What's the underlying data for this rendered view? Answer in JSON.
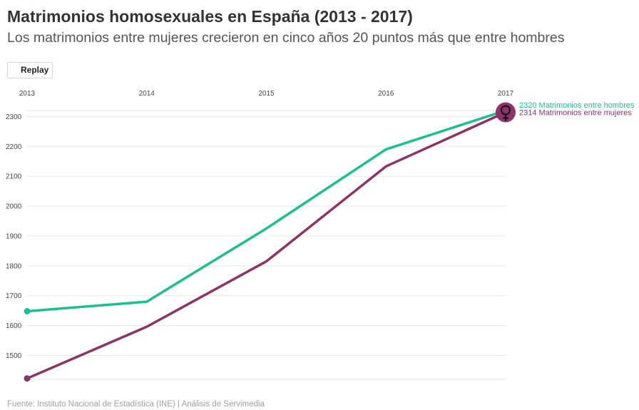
{
  "header": {
    "title": "Matrimonios homosexuales en España (2013 - 2017)",
    "subtitle": "Los matrimonios entre mujeres crecieron en cinco años 20 puntos más que entre hombres"
  },
  "controls": {
    "replay_label": "Replay"
  },
  "footer": {
    "source": "Fuente: Instituto Nacional de Estadística (INE) | Análisis de Servimedia"
  },
  "chart_data": {
    "type": "line",
    "title": "Matrimonios homosexuales en España (2013 - 2017)",
    "subtitle": "Los matrimonios entre mujeres crecieron en cinco años 20 puntos más que entre hombres",
    "xlabel": "",
    "ylabel": "",
    "x": [
      2013,
      2014,
      2015,
      2016,
      2017
    ],
    "x_tick_labels": [
      "2013",
      "2014",
      "2015",
      "2016",
      "2017"
    ],
    "y_ticks": [
      1500,
      1600,
      1700,
      1800,
      1900,
      2000,
      2100,
      2200,
      2300
    ],
    "y_tick_labels": [
      "1500",
      "1600",
      "1700",
      "1800",
      "1900",
      "2000",
      "2100",
      "2200",
      "2300"
    ],
    "ylim": [
      1420,
      2320
    ],
    "grid": true,
    "x_axis_position": "top",
    "series": [
      {
        "name": "Matrimonios entre hombres",
        "values": [
          1648,
          1680,
          1925,
          2190,
          2320
        ],
        "color": "#1dbf8e",
        "end_label": "2320 Matrimonios entre hombres"
      },
      {
        "name": "Matrimonios entre mujeres",
        "values": [
          1423,
          1596,
          1815,
          2133,
          2314
        ],
        "color": "#8b3468",
        "end_label": "2314 Matrimonios entre mujeres",
        "end_icon": "female-symbol-icon"
      }
    ]
  }
}
